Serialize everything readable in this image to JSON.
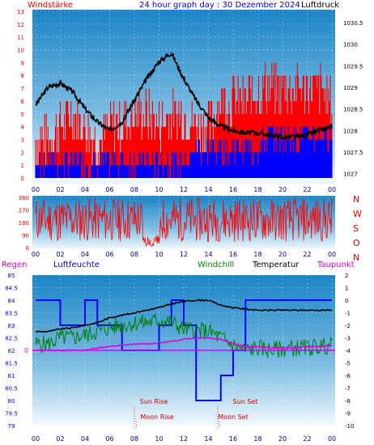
{
  "chart_data": [
    {
      "type": "line",
      "title": "24 hour graph day : 30 Dezember 2024",
      "left_label": "Windstärke",
      "right_label": "Luftdruck",
      "x_ticks": [
        "00",
        "02",
        "04",
        "06",
        "08",
        "10",
        "12",
        "14",
        "16",
        "18",
        "20",
        "22",
        "00"
      ],
      "wind_ticks": [
        "0",
        "1",
        "2",
        "3",
        "4",
        "5",
        "6",
        "7",
        "8",
        "9",
        "10",
        "11",
        "12",
        "13"
      ],
      "wind_range": [
        0,
        13
      ],
      "pressure_ticks": [
        "1027",
        "1027.5",
        "1028",
        "1028.5",
        "1029",
        "1029.5",
        "1030",
        "1030.5"
      ],
      "pressure_range": [
        1026.75,
        1030.8
      ],
      "series": [
        {
          "key": "pressure",
          "values": [
            1028.6,
            1029.0,
            1029.1,
            1028.9,
            1028.5,
            1028.2,
            1028.0,
            1028.2,
            1028.7,
            1029.2,
            1029.6,
            1029.8,
            1029.2,
            1028.7,
            1028.3,
            1028.1,
            1028.0,
            1027.95,
            1027.95,
            1027.9,
            1027.85,
            1027.85,
            1027.9,
            1028.0,
            1028.1
          ]
        },
        {
          "key": "wind_peak",
          "values": [
            3,
            3,
            4,
            5,
            4,
            3,
            4,
            4,
            5,
            5,
            4,
            5,
            5,
            4,
            4,
            6,
            6,
            6,
            7,
            7,
            7,
            7,
            7,
            7,
            6
          ]
        },
        {
          "key": "wind_avg",
          "values": [
            1,
            1,
            1,
            1,
            1,
            1,
            1,
            1,
            1,
            1,
            1,
            1,
            1,
            2,
            2,
            2,
            2,
            2,
            2,
            3,
            3,
            3,
            3,
            3,
            3
          ]
        }
      ]
    },
    {
      "type": "line",
      "right_labels": [
        "N",
        "W",
        "S",
        "O",
        "N"
      ],
      "dir_ticks": [
        "0",
        "90",
        "180",
        "270",
        "360"
      ],
      "dir_range": [
        0,
        360
      ],
      "x_ticks": [
        "00",
        "02",
        "04",
        "06",
        "08",
        "10",
        "12",
        "14",
        "16",
        "18",
        "20",
        "22",
        "00"
      ]
    },
    {
      "type": "line",
      "legend": [
        "Regen",
        "Luftfeuchte",
        "Windchill",
        "Temperatur",
        "Taupunkt"
      ],
      "humidity_ticks": [
        "79",
        "79.5",
        "80",
        "80.5",
        "81",
        "81.5",
        "82",
        "82.5",
        "83",
        "83.5",
        "84",
        "84.5",
        "85"
      ],
      "humidity_range": [
        79,
        85
      ],
      "temp_ticks": [
        "-10",
        "-9",
        "-8",
        "-7",
        "-6",
        "-5",
        "-4",
        "-3",
        "-2",
        "-1",
        "0",
        "1",
        "2"
      ],
      "temp_range": [
        -10,
        2
      ],
      "rain_label": "0",
      "x_ticks": [
        "00",
        "02",
        "04",
        "06",
        "08",
        "10",
        "12",
        "14",
        "16",
        "18",
        "20",
        "22",
        "00"
      ],
      "annotations": [
        "Sun Rise",
        "Moon Rise",
        "Sun Set",
        "Moon Set"
      ],
      "series": [
        {
          "key": "humidity",
          "values": [
            84,
            84,
            83,
            83,
            84,
            83,
            83,
            82,
            82,
            82,
            83,
            84,
            83,
            80,
            80,
            81,
            82,
            84,
            84,
            84,
            84,
            84,
            84,
            84,
            84
          ]
        },
        {
          "key": "temperature",
          "values": [
            -2.5,
            -2.5,
            -2.3,
            -2.2,
            -2.0,
            -1.8,
            -1.4,
            -1.2,
            -1.0,
            -0.8,
            -0.6,
            -0.3,
            -0.1,
            0,
            0,
            -0.4,
            -0.6,
            -0.7,
            -0.8,
            -0.8,
            -0.8,
            -0.8,
            -0.8,
            -0.8,
            -0.8
          ]
        },
        {
          "key": "windchill",
          "values": [
            -3.5,
            -3.5,
            -3.0,
            -3.0,
            -2.8,
            -2.5,
            -2.2,
            -2.0,
            -1.8,
            -1.8,
            -1.6,
            -1.8,
            -2.3,
            -2.4,
            -2.5,
            -3.0,
            -3.6,
            -4.0,
            -3.8,
            -4.0,
            -3.9,
            -3.8,
            -3.8,
            -3.7,
            -3.6
          ]
        },
        {
          "key": "dewpoint",
          "values": [
            -4.0,
            -4.0,
            -4.0,
            -4.0,
            -4.0,
            -3.8,
            -3.7,
            -3.6,
            -3.5,
            -3.5,
            -3.4,
            -3.3,
            -3.1,
            -3.0,
            -3.0,
            -3.1,
            -3.5,
            -3.7,
            -3.7,
            -3.8,
            -3.8,
            -3.8,
            -3.7,
            -3.7,
            -3.6
          ]
        }
      ]
    }
  ]
}
